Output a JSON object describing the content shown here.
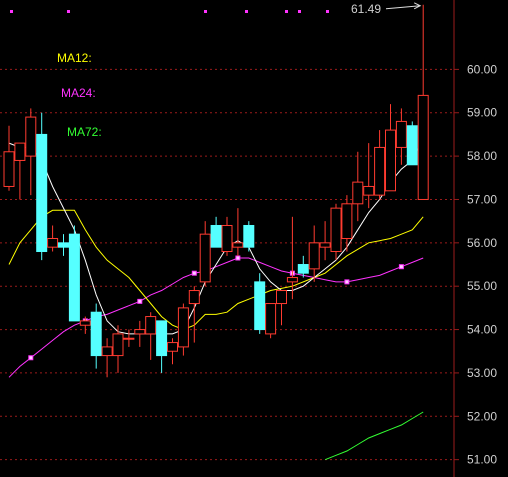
{
  "chart_data": {
    "type": "candlestick",
    "ylim": [
      50.6,
      61.6
    ],
    "yticks": [
      "60.00",
      "59.00",
      "58.00",
      "57.00",
      "56.00",
      "55.00",
      "54.00",
      "53.00",
      "52.00",
      "51.00"
    ],
    "ytick_values": [
      60,
      59,
      58,
      57,
      56,
      55,
      54,
      53,
      52,
      51
    ],
    "max_price_label": "61.49",
    "grid": true,
    "colors": {
      "up": "#ff3b30",
      "down": "#55ffff",
      "grid": "#9b1b1b",
      "ma_short": "#ffffff",
      "ma12": "#ffff00",
      "ma24": "#ff33ff",
      "ma72": "#33ff33"
    },
    "legend": [
      {
        "name": "MA12:",
        "color": "#ffff00"
      },
      {
        "name": "MA24:",
        "color": "#ff33ff"
      },
      {
        "name": "MA72:",
        "color": "#33ff33"
      }
    ],
    "candles": [
      {
        "o": 57.3,
        "h": 58.7,
        "l": 57.2,
        "c": 58.1
      },
      {
        "o": 57.9,
        "h": 58.3,
        "l": 57.0,
        "c": 58.3
      },
      {
        "o": 58.0,
        "h": 59.1,
        "l": 57.1,
        "c": 58.9
      },
      {
        "o": 58.5,
        "h": 59.0,
        "l": 55.6,
        "c": 55.8
      },
      {
        "o": 55.9,
        "h": 56.4,
        "l": 55.8,
        "c": 56.1
      },
      {
        "o": 56.0,
        "h": 56.2,
        "l": 55.7,
        "c": 55.9
      },
      {
        "o": 56.2,
        "h": 56.4,
        "l": 54.2,
        "c": 54.2
      },
      {
        "o": 54.1,
        "h": 54.3,
        "l": 53.9,
        "c": 54.2
      },
      {
        "o": 54.4,
        "h": 54.6,
        "l": 53.1,
        "c": 53.4
      },
      {
        "o": 53.4,
        "h": 53.8,
        "l": 52.9,
        "c": 53.6
      },
      {
        "o": 53.4,
        "h": 54.1,
        "l": 53.0,
        "c": 53.9
      },
      {
        "o": 53.8,
        "h": 54.0,
        "l": 53.6,
        "c": 53.8
      },
      {
        "o": 53.9,
        "h": 54.2,
        "l": 53.6,
        "c": 54.0
      },
      {
        "o": 53.9,
        "h": 54.4,
        "l": 53.3,
        "c": 54.3
      },
      {
        "o": 54.2,
        "h": 54.2,
        "l": 53.0,
        "c": 53.4
      },
      {
        "o": 53.5,
        "h": 53.8,
        "l": 53.2,
        "c": 53.7
      },
      {
        "o": 53.6,
        "h": 54.6,
        "l": 53.4,
        "c": 54.5
      },
      {
        "o": 54.6,
        "h": 55.0,
        "l": 53.7,
        "c": 54.9
      },
      {
        "o": 55.1,
        "h": 56.5,
        "l": 55.0,
        "c": 56.2
      },
      {
        "o": 56.4,
        "h": 56.6,
        "l": 55.9,
        "c": 55.9
      },
      {
        "o": 55.8,
        "h": 56.6,
        "l": 55.7,
        "c": 56.4
      },
      {
        "o": 55.9,
        "h": 56.8,
        "l": 55.7,
        "c": 56.0
      },
      {
        "o": 56.4,
        "h": 56.5,
        "l": 55.8,
        "c": 55.9
      },
      {
        "o": 55.1,
        "h": 55.3,
        "l": 53.9,
        "c": 54.0
      },
      {
        "o": 53.9,
        "h": 54.6,
        "l": 53.8,
        "c": 54.6
      },
      {
        "o": 54.6,
        "h": 54.9,
        "l": 54.1,
        "c": 54.9
      },
      {
        "o": 55.1,
        "h": 56.6,
        "l": 54.7,
        "c": 55.2
      },
      {
        "o": 55.5,
        "h": 55.7,
        "l": 55.2,
        "c": 55.3
      },
      {
        "o": 55.4,
        "h": 56.4,
        "l": 55.1,
        "c": 56.0
      },
      {
        "o": 55.9,
        "h": 56.5,
        "l": 55.6,
        "c": 56.0
      },
      {
        "o": 55.8,
        "h": 56.9,
        "l": 55.6,
        "c": 56.8
      },
      {
        "o": 56.1,
        "h": 57.1,
        "l": 55.8,
        "c": 56.9
      },
      {
        "o": 56.9,
        "h": 58.1,
        "l": 56.5,
        "c": 57.4
      },
      {
        "o": 57.1,
        "h": 58.3,
        "l": 56.8,
        "c": 57.3
      },
      {
        "o": 57.1,
        "h": 58.6,
        "l": 57.0,
        "c": 58.2
      },
      {
        "o": 57.2,
        "h": 59.2,
        "l": 57.2,
        "c": 58.6
      },
      {
        "o": 58.2,
        "h": 59.1,
        "l": 57.8,
        "c": 58.8
      },
      {
        "o": 58.7,
        "h": 58.8,
        "l": 57.8,
        "c": 57.8
      },
      {
        "o": 57.0,
        "h": 61.49,
        "l": 57.0,
        "c": 59.4
      }
    ],
    "ma_short": [
      58.3,
      58.2,
      58.2,
      57.9,
      57.3,
      56.8,
      56.3,
      55.6,
      54.8,
      54.2,
      53.95,
      53.9,
      53.9,
      53.9,
      53.9,
      53.9,
      54.0,
      54.5,
      55.1,
      55.5,
      55.9,
      56.05,
      55.9,
      55.4,
      55.1,
      54.9,
      54.9,
      55.0,
      55.2,
      55.4,
      55.6,
      55.9,
      56.3,
      56.7,
      57.0,
      57.4,
      57.7,
      57.9,
      58.4
    ],
    "ma12": [
      55.5,
      56.0,
      56.3,
      56.6,
      56.75,
      56.75,
      56.75,
      56.3,
      55.9,
      55.6,
      55.4,
      55.2,
      54.9,
      54.6,
      54.3,
      54.1,
      54.0,
      54.1,
      54.35,
      54.35,
      54.4,
      54.6,
      54.7,
      54.8,
      54.9,
      54.95,
      55.0,
      55.1,
      55.2,
      55.3,
      55.5,
      55.7,
      55.85,
      56.0,
      56.05,
      56.1,
      56.2,
      56.3,
      56.6
    ],
    "ma24": [
      52.9,
      53.15,
      53.35,
      53.55,
      53.75,
      53.95,
      54.1,
      54.2,
      54.3,
      54.35,
      54.45,
      54.55,
      54.65,
      54.8,
      54.9,
      55.05,
      55.2,
      55.3,
      55.35,
      55.45,
      55.55,
      55.65,
      55.65,
      55.55,
      55.45,
      55.35,
      55.3,
      55.25,
      55.2,
      55.15,
      55.1,
      55.1,
      55.15,
      55.2,
      55.25,
      55.35,
      55.45,
      55.55,
      55.65
    ],
    "ma72": [
      null,
      null,
      null,
      null,
      null,
      null,
      null,
      null,
      null,
      null,
      null,
      null,
      null,
      null,
      null,
      null,
      null,
      null,
      null,
      null,
      null,
      null,
      null,
      null,
      null,
      null,
      null,
      null,
      null,
      51.0,
      51.1,
      51.2,
      51.35,
      51.5,
      51.6,
      51.7,
      51.8,
      51.95,
      52.1
    ]
  }
}
